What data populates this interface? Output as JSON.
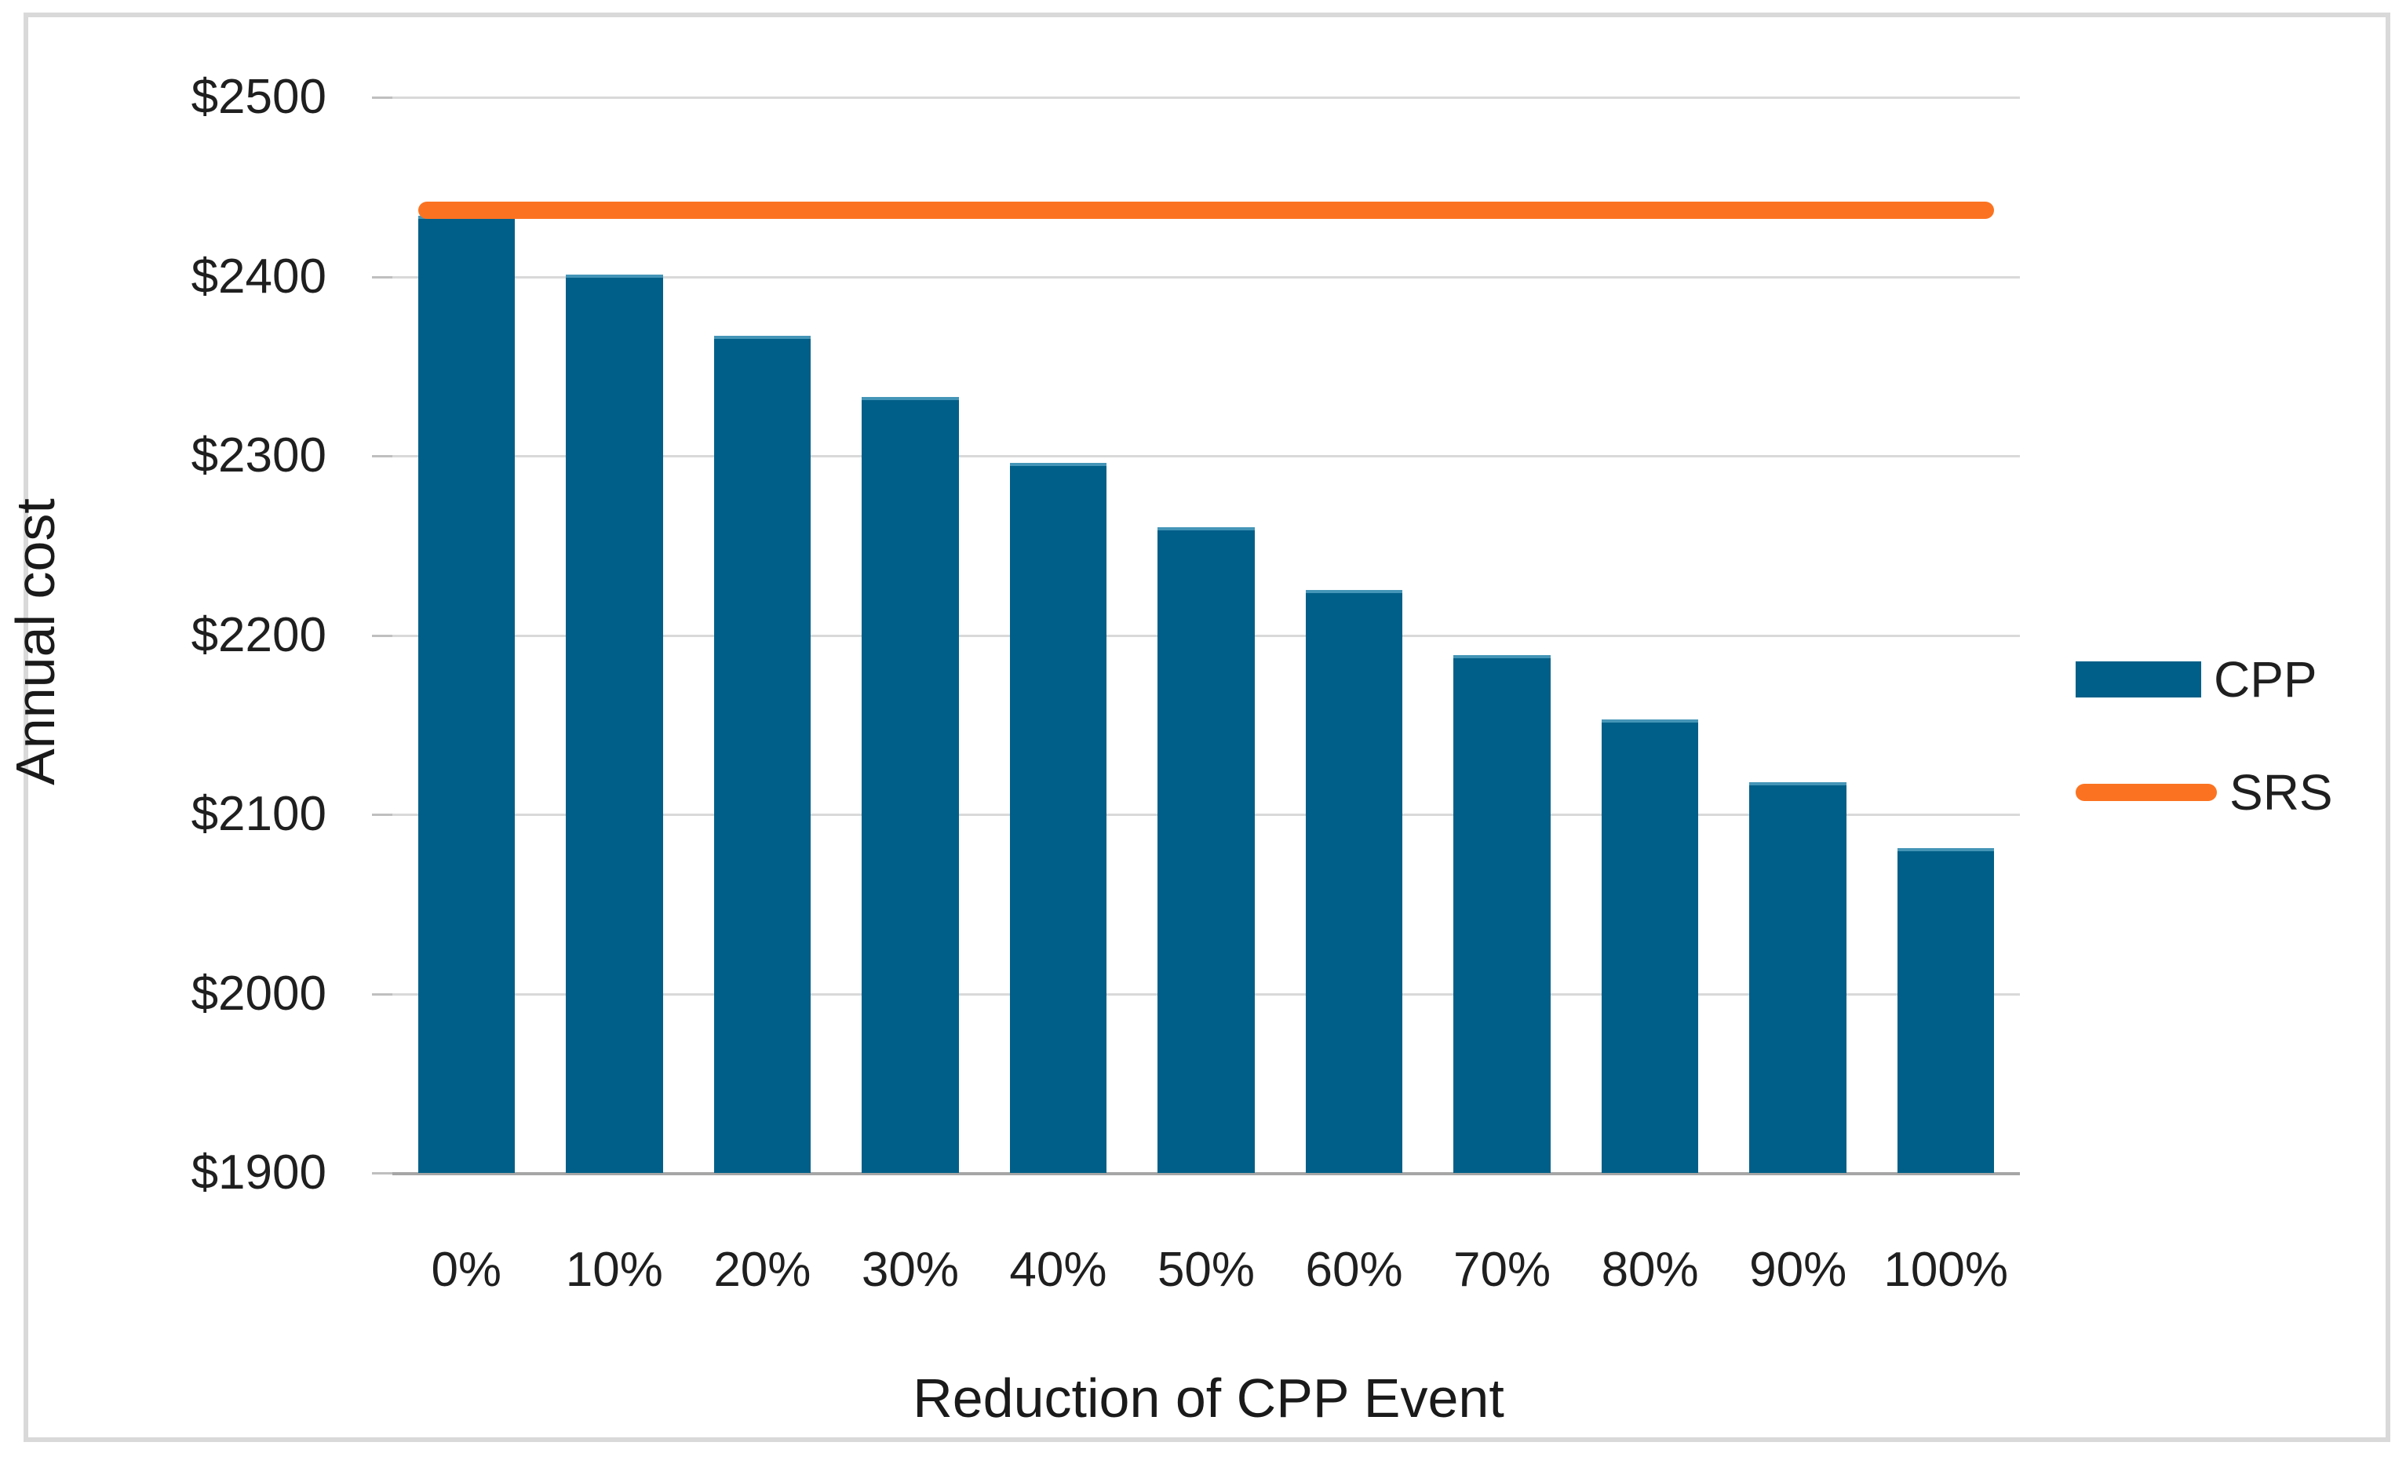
{
  "chart": {
    "background_color": "#ffffff",
    "frame_border_color": "#d9d9d9",
    "gridline_color": "#d9d9d9",
    "axis_line_color": "#a6a6a6",
    "text_color": "#1f1f1f"
  },
  "chart_data": {
    "type": "bar",
    "title": "",
    "xlabel": "Reduction of CPP Event",
    "ylabel": "Annual cost",
    "categories": [
      "0%",
      "10%",
      "20%",
      "30%",
      "40%",
      "50%",
      "60%",
      "70%",
      "80%",
      "90%",
      "100%"
    ],
    "series": [
      {
        "name": "CPP",
        "type": "bar",
        "color": "#005f88",
        "values": [
          2434,
          2401,
          2367,
          2333,
          2296,
          2260,
          2225,
          2189,
          2153,
          2118,
          2081
        ]
      },
      {
        "name": "SRS",
        "type": "line",
        "color": "#fb7321",
        "values": [
          2437,
          2437,
          2437,
          2437,
          2437,
          2437,
          2437,
          2437,
          2437,
          2437,
          2437
        ]
      }
    ],
    "ylim": [
      1900,
      2500
    ],
    "ytick_step": 100,
    "ytick_prefix": "$",
    "yticks_labels": [
      "$1900",
      "$2000",
      "$2100",
      "$2200",
      "$2300",
      "$2400",
      "$2500"
    ],
    "grid": true,
    "legend_position": "right",
    "legend_entries": [
      "CPP",
      "SRS"
    ]
  }
}
